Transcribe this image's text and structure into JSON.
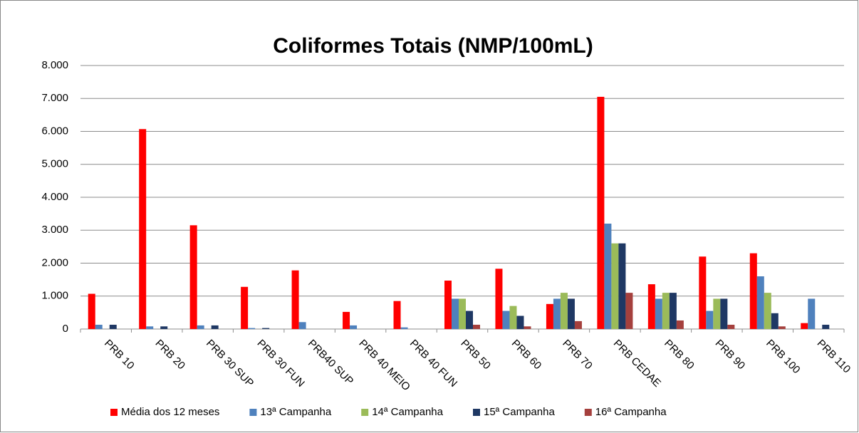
{
  "chart_data": {
    "type": "bar",
    "title": "Coliformes Totais (NMP/100mL)",
    "categories": [
      "PRB 10",
      "PRB 20",
      "PRB 30 SUP",
      "PRB 30 FUN",
      "PRB40 SUP",
      "PRB 40 MEIO",
      "PRB 40 FUN",
      "PRB 50",
      "PRB 60",
      "PRB 70",
      "PRB CEDAE",
      "PRB 80",
      "PRB 90",
      "PRB 100",
      "PRB 110"
    ],
    "series": [
      {
        "name": "Média dos 12 meses",
        "color": "#ff0000",
        "values": [
          1070,
          6070,
          3150,
          1280,
          1780,
          520,
          850,
          1470,
          1830,
          760,
          7050,
          1360,
          2200,
          2300,
          180
        ]
      },
      {
        "name": "13ª Campanha",
        "color": "#4f81bd",
        "values": [
          130,
          80,
          110,
          30,
          210,
          110,
          50,
          920,
          550,
          920,
          3200,
          920,
          550,
          1600,
          920
        ]
      },
      {
        "name": "14ª Campanha",
        "color": "#9bbb59",
        "values": [
          0,
          0,
          0,
          0,
          0,
          0,
          0,
          920,
          700,
          1100,
          2600,
          1100,
          920,
          1100,
          0
        ]
      },
      {
        "name": "15ª Campanha",
        "color": "#1f3864",
        "values": [
          130,
          80,
          110,
          30,
          0,
          0,
          0,
          550,
          400,
          920,
          2600,
          1100,
          920,
          480,
          130
        ]
      },
      {
        "name": "16ª Campanha",
        "color": "#a5403d",
        "values": [
          0,
          0,
          0,
          0,
          0,
          0,
          0,
          130,
          80,
          240,
          1100,
          260,
          130,
          80,
          0
        ]
      }
    ],
    "ylim": [
      0,
      8000
    ],
    "yticks": [
      0,
      {
        "value": 1000,
        "label": "1.000"
      },
      {
        "value": 2000,
        "label": "2.000"
      },
      {
        "value": 3000,
        "label": "3.000"
      },
      {
        "value": 4000,
        "label": "4.000"
      },
      {
        "value": 5000,
        "label": "5.000"
      },
      {
        "value": 6000,
        "label": "6.000"
      },
      {
        "value": 7000,
        "label": "7.000"
      },
      {
        "value": 8000,
        "label": "8.000"
      }
    ],
    "grid": true,
    "legend": "bottom"
  }
}
